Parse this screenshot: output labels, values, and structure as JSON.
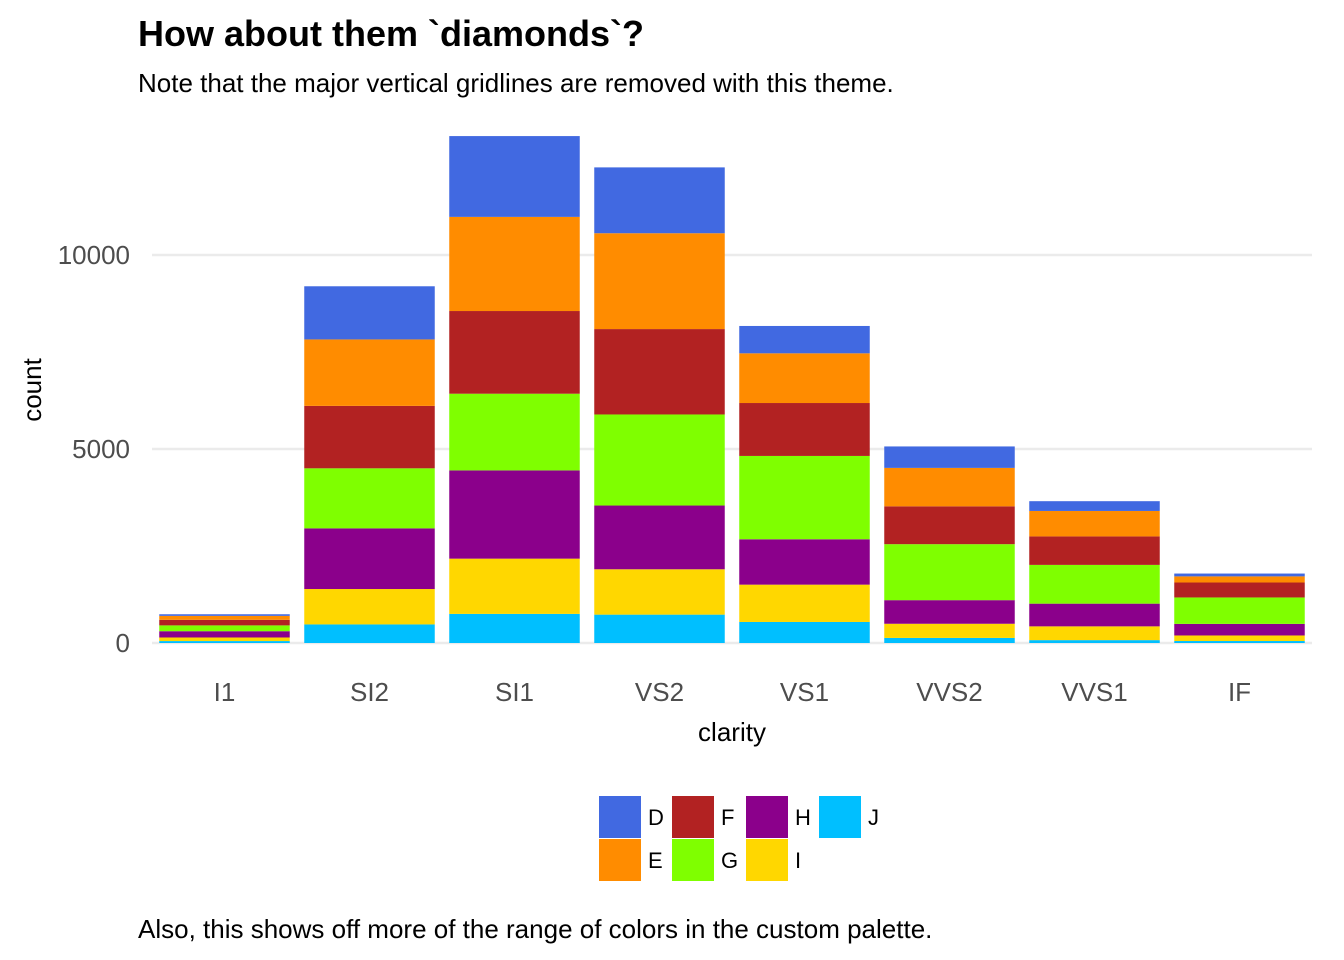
{
  "chart_data": {
    "type": "bar",
    "stacked": true,
    "title": "How about them `diamonds`?",
    "subtitle": "Note that the major vertical gridlines are removed with this theme.",
    "caption": "Also, this shows off more of the range of colors in the custom palette.",
    "xlabel": "clarity",
    "ylabel": "count",
    "ylim": [
      0,
      13000
    ],
    "yticks": [
      0,
      5000,
      10000
    ],
    "ytick_labels": [
      "0",
      "5000",
      "10000"
    ],
    "grid": {
      "horizontal_major": true,
      "vertical_major": false
    },
    "legend_position": "bottom",
    "legend_title": "",
    "categories": [
      "I1",
      "SI2",
      "SI1",
      "VS2",
      "VS1",
      "VVS2",
      "VVS1",
      "IF"
    ],
    "series": [
      {
        "name": "D",
        "color": "#4169E1",
        "values": [
          42,
          1370,
          2083,
          1697,
          705,
          553,
          252,
          73
        ]
      },
      {
        "name": "E",
        "color": "#FF8C00",
        "values": [
          102,
          1713,
          2426,
          2470,
          1281,
          991,
          656,
          158
        ]
      },
      {
        "name": "F",
        "color": "#B22222",
        "values": [
          143,
          1609,
          2131,
          2201,
          1364,
          975,
          734,
          385
        ]
      },
      {
        "name": "G",
        "color": "#7FFF00",
        "values": [
          150,
          1548,
          1976,
          2347,
          2148,
          1443,
          999,
          681
        ]
      },
      {
        "name": "H",
        "color": "#8B008B",
        "values": [
          162,
          1563,
          2275,
          1643,
          1169,
          608,
          585,
          299
        ]
      },
      {
        "name": "I",
        "color": "#FFD700",
        "values": [
          92,
          912,
          1424,
          1169,
          962,
          365,
          355,
          143
        ]
      },
      {
        "name": "J",
        "color": "#00BFFF",
        "values": [
          50,
          479,
          750,
          731,
          542,
          131,
          74,
          51
        ]
      }
    ],
    "legend_layout": [
      [
        "D",
        "F",
        "H",
        "J"
      ],
      [
        "E",
        "G",
        "I"
      ]
    ]
  }
}
